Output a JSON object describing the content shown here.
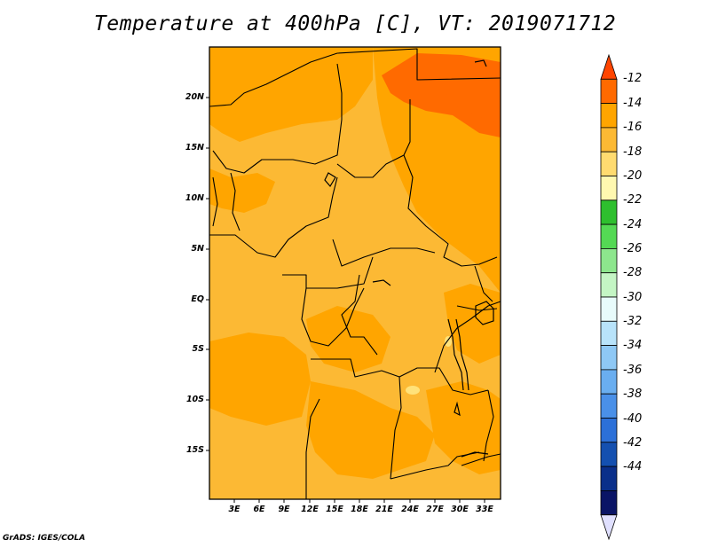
{
  "title": "Temperature at 400hPa [C], VT: 2019071712",
  "credit": "GrADS: IGES/COLA",
  "map": {
    "y_ticks": [
      "20N",
      "15N",
      "10N",
      "5N",
      "EQ",
      "5S",
      "10S",
      "15S"
    ],
    "x_ticks": [
      "3E",
      "6E",
      "9E",
      "12E",
      "15E",
      "18E",
      "21E",
      "24E",
      "27E",
      "30E",
      "33E"
    ],
    "base_color": "#FCB934",
    "region_colors": {
      "orange": "#FFA500",
      "light_orange": "#FCB934",
      "dark_orange": "#FF6A00",
      "yellow": "#FFE27A"
    }
  },
  "colorbar": {
    "labels": [
      "-12",
      "-14",
      "-16",
      "-18",
      "-20",
      "-22",
      "-24",
      "-26",
      "-28",
      "-30",
      "-32",
      "-34",
      "-36",
      "-38",
      "-40",
      "-42",
      "-44"
    ],
    "colors": [
      "#FF4500",
      "#FF6A00",
      "#FFA500",
      "#FCB934",
      "#FFDB70",
      "#FFF8B0",
      "#2EBF2E",
      "#54D954",
      "#8DE68D",
      "#C4F5C4",
      "#E8FBFB",
      "#B8E3FA",
      "#8EC8F5",
      "#6AAEF0",
      "#4A90E8",
      "#2C70D8",
      "#1450B0",
      "#0A2F8A",
      "#0A1466",
      "#E0E0FF"
    ]
  }
}
